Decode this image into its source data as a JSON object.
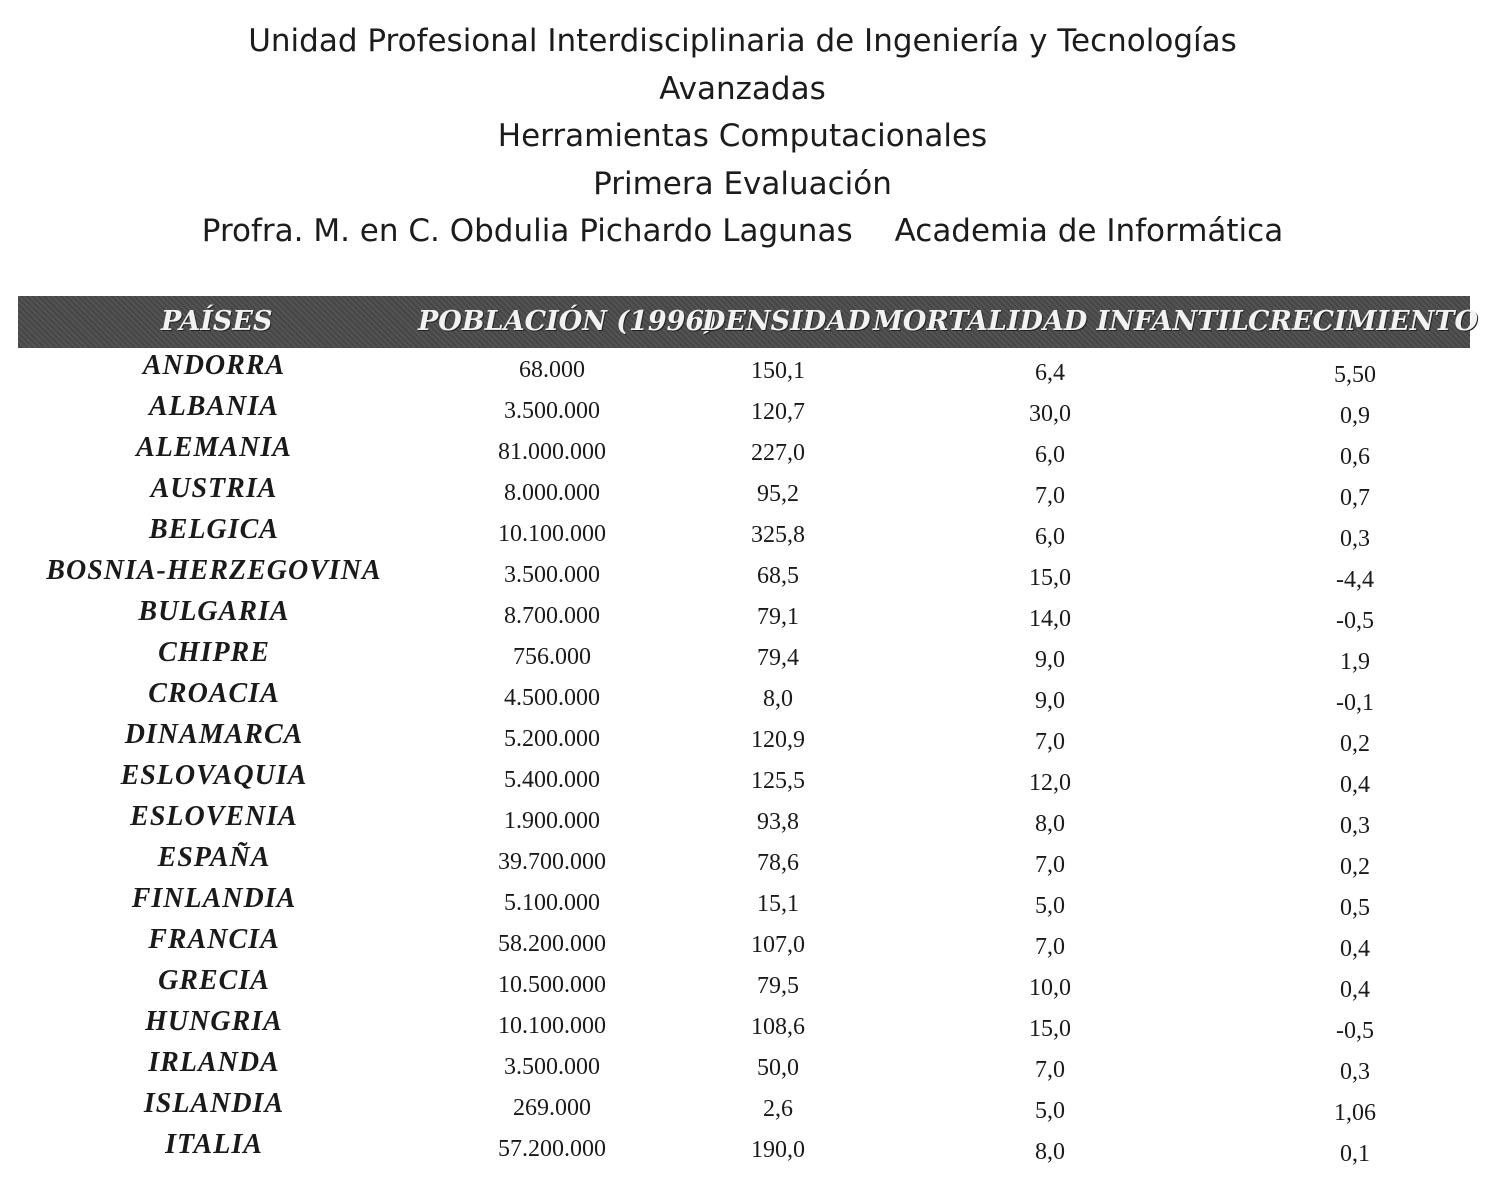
{
  "header": {
    "line1": "Unidad Profesional Interdisciplinaria de Ingeniería y Tecnologías",
    "line2": "Avanzadas",
    "line3": "Herramientas Computacionales",
    "line4": "Primera Evaluación",
    "professor": "Profra. M. en C. Obdulia Pichardo Lagunas",
    "academy": "Academia de Informática"
  },
  "table": {
    "columns": [
      "PAÍSES",
      "POBLACIÓN (1996)",
      "DENSIDAD",
      "MORTALIDAD INFANTIL",
      "CRECIMIENTO"
    ],
    "rows": [
      [
        "ANDORRA",
        "68.000",
        "150,1",
        "6,4",
        "5,50"
      ],
      [
        "ALBANIA",
        "3.500.000",
        "120,7",
        "30,0",
        "0,9"
      ],
      [
        "ALEMANIA",
        "81.000.000",
        "227,0",
        "6,0",
        "0,6"
      ],
      [
        "AUSTRIA",
        "8.000.000",
        "95,2",
        "7,0",
        "0,7"
      ],
      [
        "BELGICA",
        "10.100.000",
        "325,8",
        "6,0",
        "0,3"
      ],
      [
        "BOSNIA-HERZEGOVINA",
        "3.500.000",
        "68,5",
        "15,0",
        "-4,4"
      ],
      [
        "BULGARIA",
        "8.700.000",
        "79,1",
        "14,0",
        "-0,5"
      ],
      [
        "CHIPRE",
        "756.000",
        "79,4",
        "9,0",
        "1,9"
      ],
      [
        "CROACIA",
        "4.500.000",
        "8,0",
        "9,0",
        "-0,1"
      ],
      [
        "DINAMARCA",
        "5.200.000",
        "120,9",
        "7,0",
        "0,2"
      ],
      [
        "ESLOVAQUIA",
        "5.400.000",
        "125,5",
        "12,0",
        "0,4"
      ],
      [
        "ESLOVENIA",
        "1.900.000",
        "93,8",
        "8,0",
        "0,3"
      ],
      [
        "ESPAÑA",
        "39.700.000",
        "78,6",
        "7,0",
        "0,2"
      ],
      [
        "FINLANDIA",
        "5.100.000",
        "15,1",
        "5,0",
        "0,5"
      ],
      [
        "FRANCIA",
        "58.200.000",
        "107,0",
        "7,0",
        "0,4"
      ],
      [
        "GRECIA",
        "10.500.000",
        "79,5",
        "10,0",
        "0,4"
      ],
      [
        "HUNGRIA",
        "10.100.000",
        "108,6",
        "15,0",
        "-0,5"
      ],
      [
        "IRLANDA",
        "3.500.000",
        "50,0",
        "7,0",
        "0,3"
      ],
      [
        "ISLANDIA",
        "269.000",
        "2,6",
        "5,0",
        "1,06"
      ],
      [
        "ITALIA",
        "57.200.000",
        "190,0",
        "8,0",
        "0,1"
      ]
    ]
  }
}
